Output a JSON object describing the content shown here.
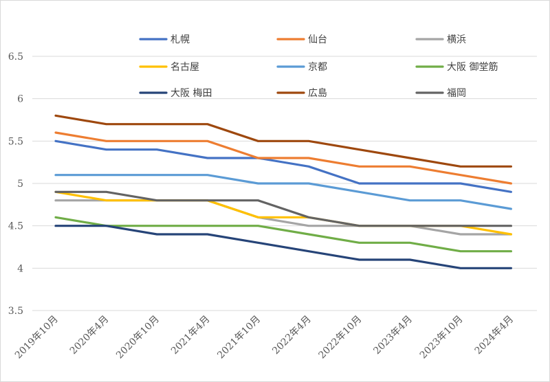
{
  "chart_data": {
    "type": "line",
    "title": "",
    "xlabel": "",
    "ylabel": "",
    "categories": [
      "2019年10月",
      "2020年4月",
      "2020年10月",
      "2021年4月",
      "2021年10月",
      "2022年4月",
      "2022年10月",
      "2023年4月",
      "2023年10月",
      "2024年4月"
    ],
    "ylim": [
      3.5,
      6.5
    ],
    "yticks": [
      3.5,
      4,
      4.5,
      5,
      5.5,
      6,
      6.5
    ],
    "ytick_labels": [
      "3.5",
      "4",
      "4.5",
      "5",
      "5.5",
      "6",
      "6.5"
    ],
    "grid": true,
    "legend_position": "top",
    "series": [
      {
        "name": "札幌",
        "color": "#4472C4",
        "values": [
          5.5,
          5.4,
          5.4,
          5.3,
          5.3,
          5.2,
          5.0,
          5.0,
          5.0,
          4.9
        ]
      },
      {
        "name": "仙台",
        "color": "#ED7D31",
        "values": [
          5.6,
          5.5,
          5.5,
          5.5,
          5.3,
          5.3,
          5.2,
          5.2,
          5.1,
          5.0
        ]
      },
      {
        "name": "横浜",
        "color": "#A5A5A5",
        "values": [
          4.8,
          4.8,
          4.8,
          4.8,
          4.6,
          4.5,
          4.5,
          4.5,
          4.4,
          4.4
        ]
      },
      {
        "name": "名古屋",
        "color": "#FFC000",
        "values": [
          4.9,
          4.8,
          4.8,
          4.8,
          4.6,
          4.6,
          4.5,
          4.5,
          4.5,
          4.4
        ]
      },
      {
        "name": "京都",
        "color": "#5B9BD5",
        "values": [
          5.1,
          5.1,
          5.1,
          5.1,
          5.0,
          5.0,
          4.9,
          4.8,
          4.8,
          4.7
        ]
      },
      {
        "name": "大阪 御堂筋",
        "color": "#70AD47",
        "values": [
          4.6,
          4.5,
          4.5,
          4.5,
          4.5,
          4.4,
          4.3,
          4.3,
          4.2,
          4.2
        ]
      },
      {
        "name": "大阪 梅田",
        "color": "#264478",
        "values": [
          4.5,
          4.5,
          4.4,
          4.4,
          4.3,
          4.2,
          4.1,
          4.1,
          4.0,
          4.0
        ]
      },
      {
        "name": "広島",
        "color": "#9E480E",
        "values": [
          5.8,
          5.7,
          5.7,
          5.7,
          5.5,
          5.5,
          5.4,
          5.3,
          5.2,
          5.2
        ]
      },
      {
        "name": "福岡",
        "color": "#636363",
        "values": [
          4.9,
          4.9,
          4.8,
          4.8,
          4.8,
          4.6,
          4.5,
          4.5,
          4.5,
          4.5
        ]
      }
    ]
  }
}
